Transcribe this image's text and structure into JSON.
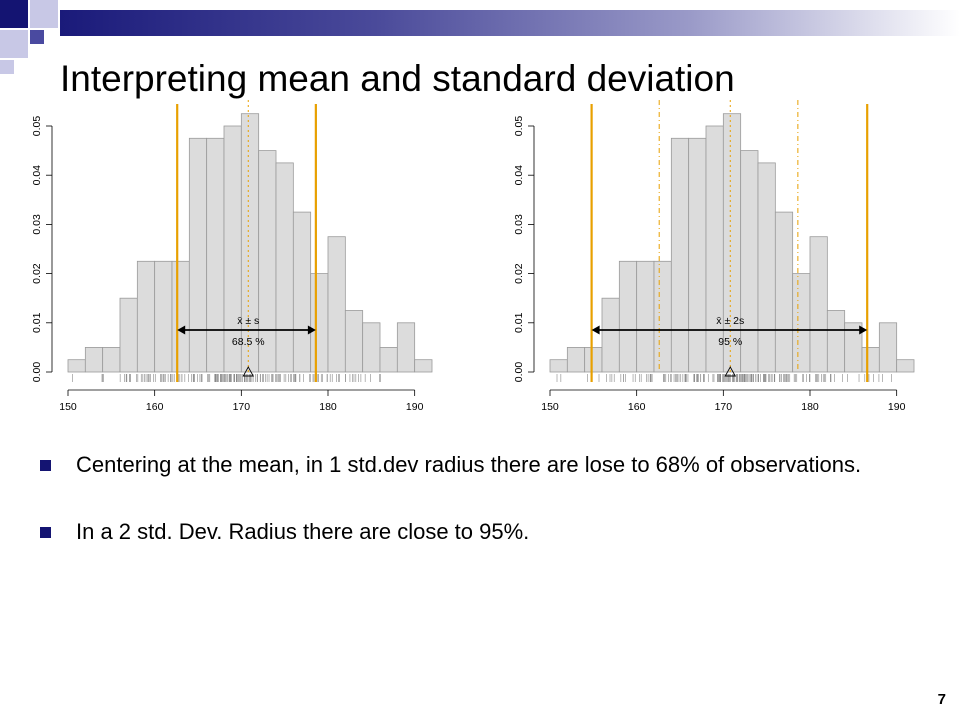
{
  "slide": {
    "title": "Interpreting mean and standard deviation",
    "page_number": "7",
    "accent_color": "#1a1a7a",
    "bullet_color": "#141472"
  },
  "bullets": [
    "Centering at the mean, in 1 std.dev radius there are lose to 68% of observations.",
    "In a 2 std. Dev. Radius there are close to 95%."
  ],
  "chart_data": [
    {
      "type": "bar",
      "bin_edges": [
        150,
        152,
        154,
        156,
        158,
        160,
        162,
        164,
        166,
        168,
        170,
        172,
        174,
        176,
        178,
        180,
        182,
        184,
        186,
        188,
        190,
        192
      ],
      "values": [
        0.0025,
        0.005,
        0.005,
        0.015,
        0.0225,
        0.0225,
        0.0225,
        0.0475,
        0.0475,
        0.05,
        0.0525,
        0.045,
        0.0425,
        0.0325,
        0.02,
        0.0275,
        0.0125,
        0.01,
        0.005,
        0.01,
        0.0025
      ],
      "x_ticks": [
        "150",
        "160",
        "170",
        "180",
        "190"
      ],
      "y_ticks": [
        "0.00",
        "0.01",
        "0.02",
        "0.03",
        "0.04",
        "0.05"
      ],
      "xlim": [
        150,
        192
      ],
      "ylim": [
        0,
        0.05
      ],
      "mean": 170.8,
      "interval_solid": [
        162.6,
        178.6
      ],
      "interval_dashed": [],
      "annotation_label": "x̄ ± s",
      "annotation_percent": "68.5 %",
      "bar_color": "#dcdcdc",
      "line_color": "#e8a000"
    },
    {
      "type": "bar",
      "bin_edges": [
        150,
        152,
        154,
        156,
        158,
        160,
        162,
        164,
        166,
        168,
        170,
        172,
        174,
        176,
        178,
        180,
        182,
        184,
        186,
        188,
        190,
        192
      ],
      "values": [
        0.0025,
        0.005,
        0.005,
        0.015,
        0.0225,
        0.0225,
        0.0225,
        0.0475,
        0.0475,
        0.05,
        0.0525,
        0.045,
        0.0425,
        0.0325,
        0.02,
        0.0275,
        0.0125,
        0.01,
        0.005,
        0.01,
        0.0025
      ],
      "x_ticks": [
        "150",
        "160",
        "170",
        "180",
        "190"
      ],
      "y_ticks": [
        "0.00",
        "0.01",
        "0.02",
        "0.03",
        "0.04",
        "0.05"
      ],
      "xlim": [
        150,
        192
      ],
      "ylim": [
        0,
        0.05
      ],
      "mean": 170.8,
      "interval_solid": [
        154.8,
        186.6
      ],
      "interval_dashed": [
        162.6,
        178.6
      ],
      "annotation_label": "x̄ ± 2s",
      "annotation_percent": "95 %",
      "bar_color": "#dcdcdc",
      "line_color": "#e8a000"
    }
  ]
}
